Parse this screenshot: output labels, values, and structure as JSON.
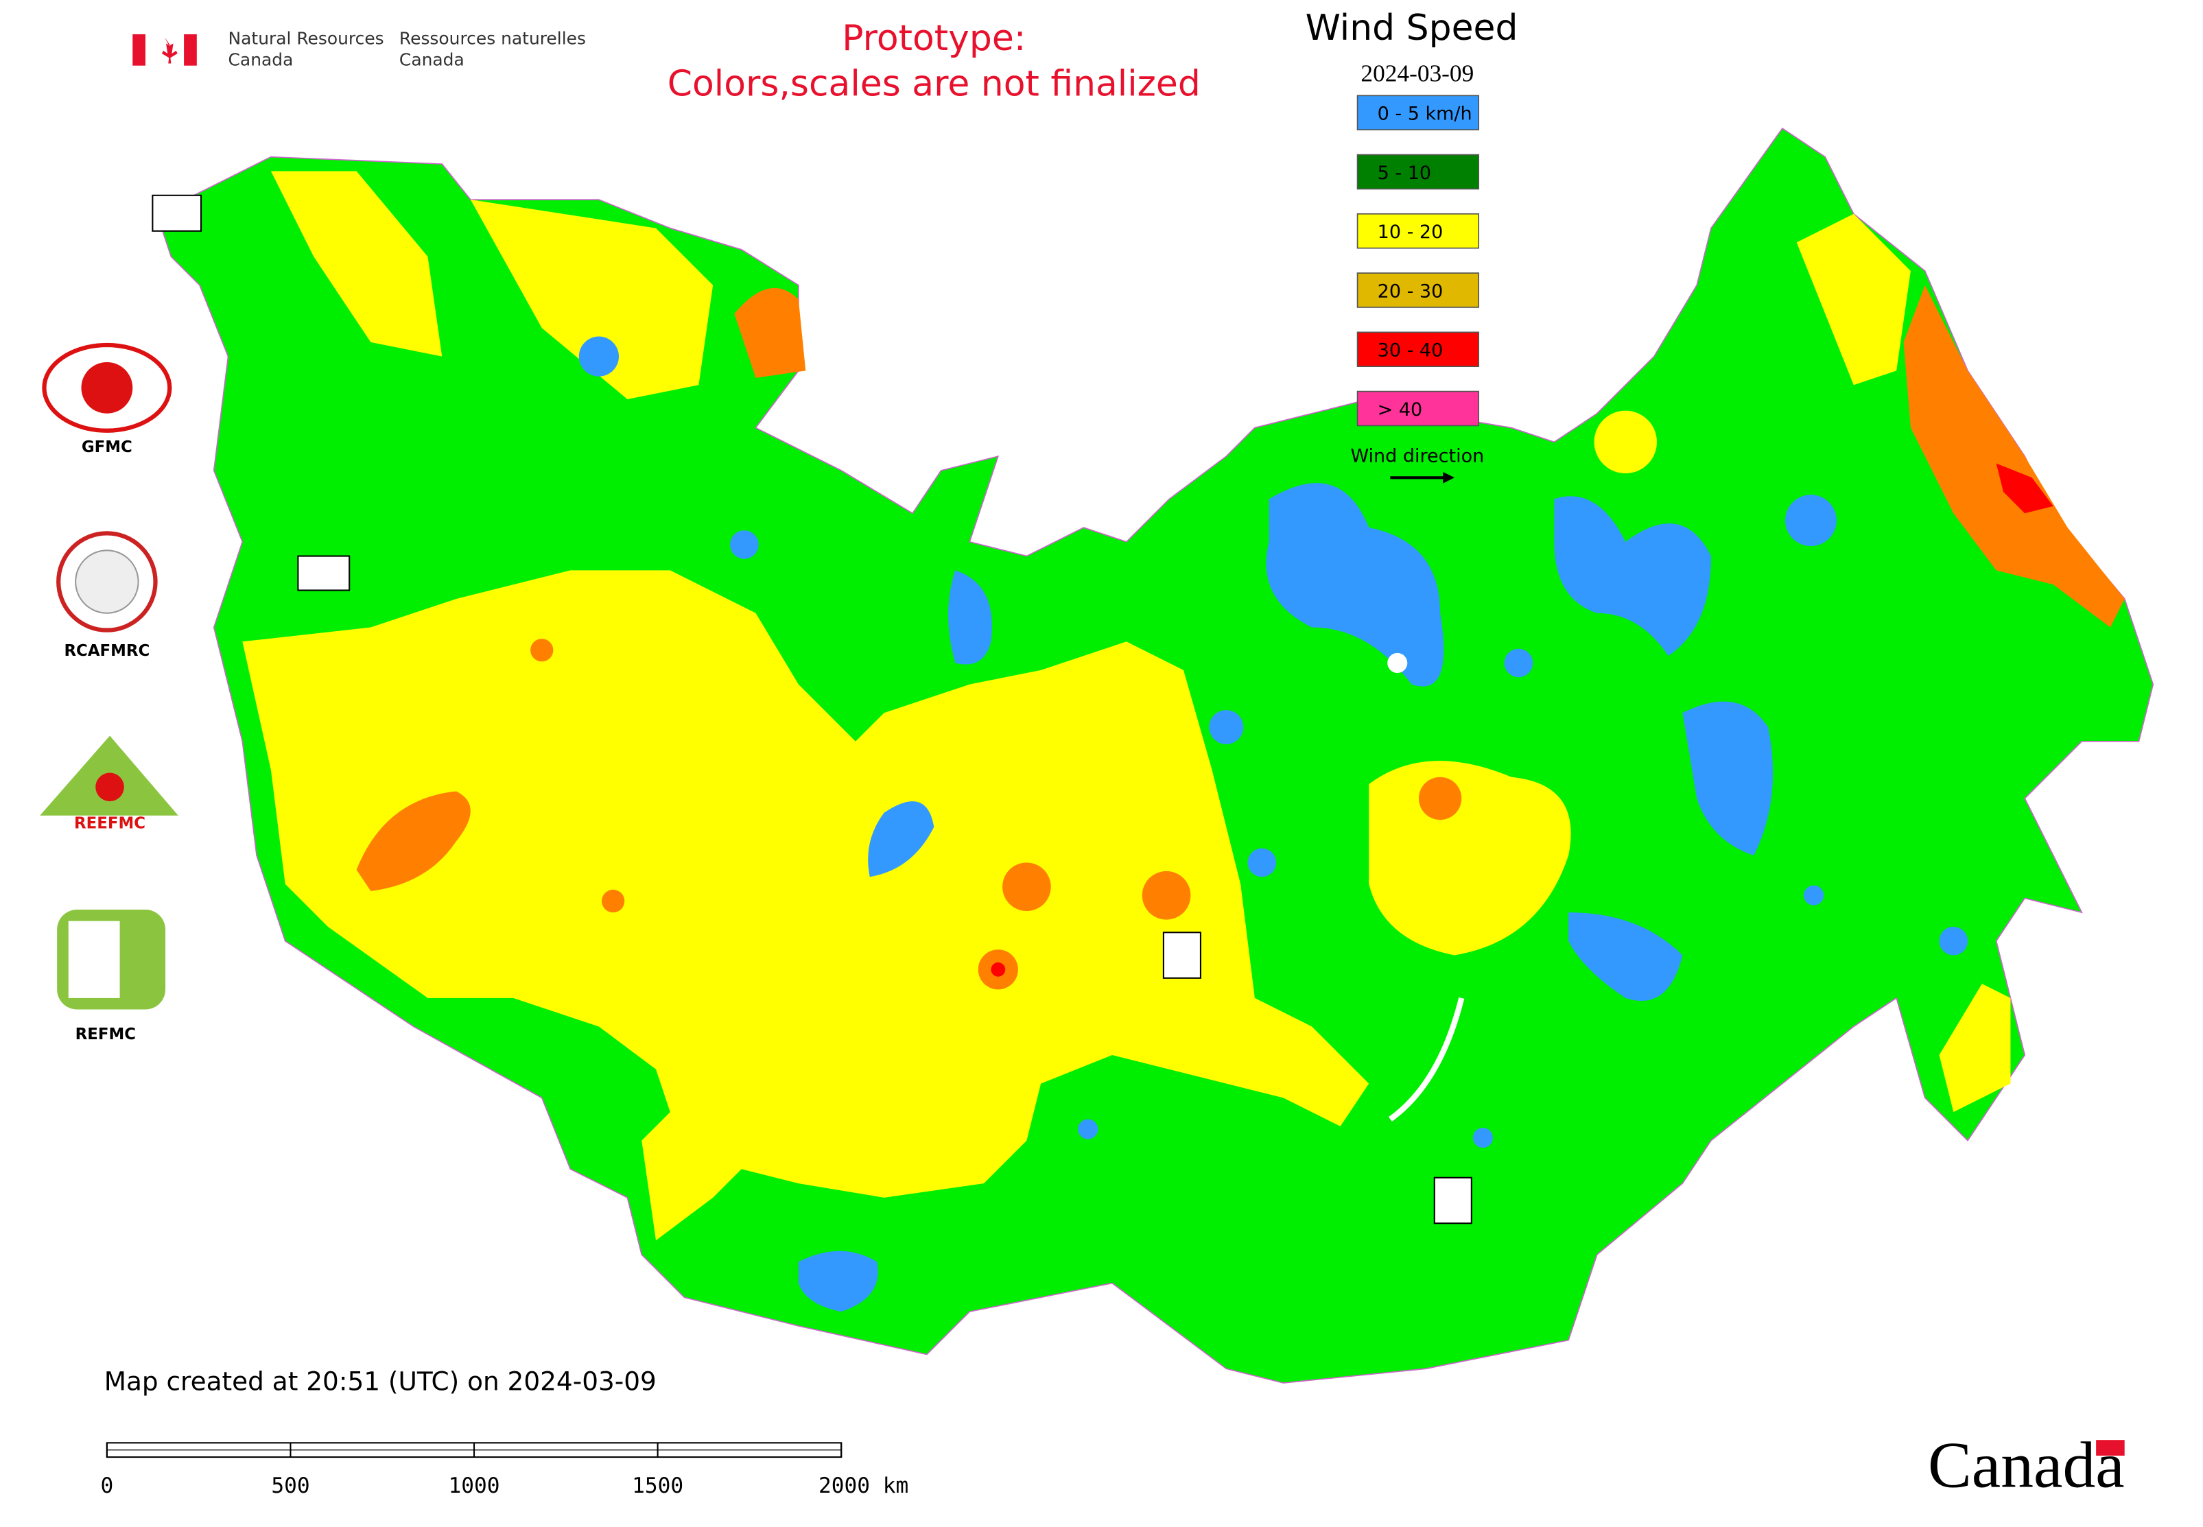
{
  "header": {
    "agency_en_1": "Natural Resources",
    "agency_en_2": "Canada",
    "agency_fr_1": "Ressources naturelles",
    "agency_fr_2": "Canada",
    "prototype_line_1": "Prototype:",
    "prototype_line_2": "Colors,scales are not finalized"
  },
  "legend": {
    "title": "Wind Speed",
    "date": "2024-03-09",
    "entries": [
      {
        "label": "0 - 5 km/h",
        "color": "#3399ff"
      },
      {
        "label": "5 - 10",
        "color": "#008000"
      },
      {
        "label": "10 - 20",
        "color": "#ffff00"
      },
      {
        "label": "20 - 30",
        "color": "#e0b800"
      },
      {
        "label": "30 - 40",
        "color": "#ff0000"
      },
      {
        "label": "> 40",
        "color": "#ff3399"
      }
    ],
    "wind_direction": "Wind direction"
  },
  "logos": {
    "gfmc": "GFMC",
    "rcafmrc": "RCAFMRC",
    "reefmc": "REEFMC",
    "refmc": "REFMC"
  },
  "footer": {
    "created": "Map created at 20:51 (UTC) on 2024-03-09",
    "scale_labels": [
      "0",
      "500",
      "1000",
      "1500",
      "2000 km"
    ],
    "wordmark": "Canada"
  }
}
